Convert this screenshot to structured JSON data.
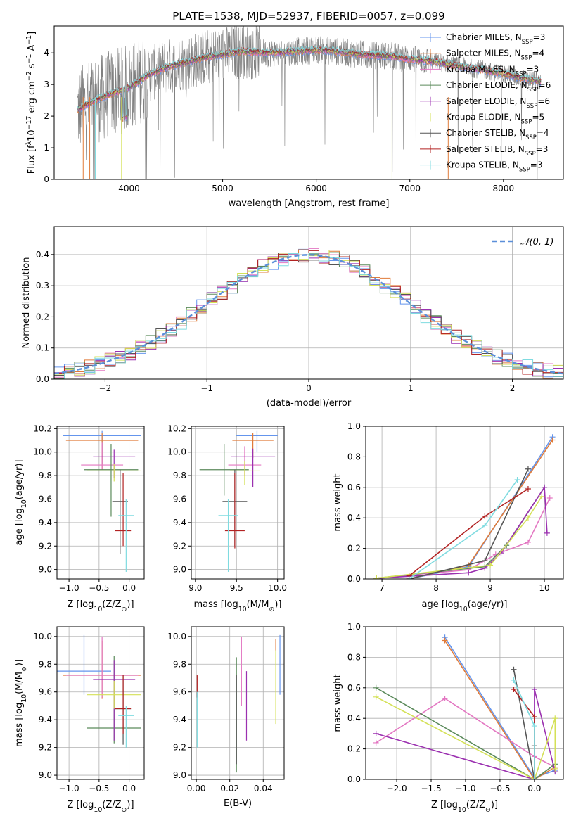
{
  "chart_data": [
    {
      "id": "spectrum",
      "type": "line",
      "title": "PLATE=1538, MJD=52937, FIBERID=0057, z=0.099",
      "xlabel": "wavelength [Angstrom, rest frame]",
      "ylabel_parts": [
        "Flux [f",
        "λ",
        "10",
        "−17",
        " erg cm",
        "−2",
        " s",
        "−1",
        " A",
        "−1",
        "]"
      ],
      "xlim": [
        3200,
        8640
      ],
      "ylim": [
        0,
        4.85
      ],
      "xticks": [
        4000,
        5000,
        6000,
        7000,
        8000
      ],
      "yticks": [
        0,
        1,
        2,
        3,
        4
      ],
      "grid": false,
      "legend_position": "top-right",
      "continuum": {
        "x": [
          3450,
          3600,
          3800,
          4000,
          4200,
          4400,
          4600,
          4800,
          5000,
          5200,
          5500,
          5800,
          6000,
          6200,
          6500,
          6800,
          7000,
          7200,
          7500,
          7800,
          8000,
          8200,
          8400
        ],
        "y": [
          2.2,
          2.45,
          2.7,
          2.9,
          3.3,
          3.55,
          3.7,
          3.85,
          3.95,
          4.05,
          4.0,
          4.05,
          4.1,
          4.05,
          3.95,
          3.9,
          3.8,
          3.75,
          3.6,
          3.45,
          3.35,
          3.2,
          3.1
        ]
      },
      "observed_color": "#808080",
      "series": [
        {
          "name": "Chabrier MILES, N",
          "sub": "SSP",
          "suffix": "=3",
          "color": "#6495ed"
        },
        {
          "name": "Salpeter MILES, N",
          "sub": "SSP",
          "suffix": "=4",
          "color": "#e07b39"
        },
        {
          "name": "Kroupa MILES, N",
          "sub": "SSP",
          "suffix": "=3",
          "color": "#e377c2"
        },
        {
          "name": "Chabrier ELODIE, N",
          "sub": "SSP",
          "suffix": "=6",
          "color": "#5b8a5b"
        },
        {
          "name": "Salpeter ELODIE, N",
          "sub": "SSP",
          "suffix": "=6",
          "color": "#9b30b0"
        },
        {
          "name": "Kroupa ELODIE, N",
          "sub": "SSP",
          "suffix": "=5",
          "color": "#d4e157"
        },
        {
          "name": "Chabrier STELIB, N",
          "sub": "SSP",
          "suffix": "=4",
          "color": "#555555"
        },
        {
          "name": "Salpeter STELIB, N",
          "sub": "SSP",
          "suffix": "=3",
          "color": "#b22222"
        },
        {
          "name": "Kroupa STELIB, N",
          "sub": "SSP",
          "suffix": "=3",
          "color": "#7fdbe0"
        }
      ]
    },
    {
      "id": "residuals",
      "type": "line",
      "xlabel": "(data-model)/error",
      "ylabel": "Normed distribution",
      "xlim": [
        -2.5,
        2.5
      ],
      "ylim": [
        0,
        0.49
      ],
      "xticks": [
        -2,
        -1,
        0,
        1,
        2
      ],
      "yticks": [
        0.0,
        0.1,
        0.2,
        0.3,
        0.4
      ],
      "grid": true,
      "legend_position": "top-right",
      "legend_label": "𝒩(0, 1)",
      "gaussian_color": "#5b8fd9",
      "bins": {
        "start": -2.5,
        "width": 0.1
      }
    },
    {
      "id": "age_vs_Z",
      "type": "scatter",
      "xlabel_parts": [
        "Z [log",
        "10",
        "(Z/Z",
        "⊙",
        ")]"
      ],
      "ylabel_parts": [
        "age  [log",
        "10",
        "(age/yr)]"
      ],
      "xlim": [
        -1.2,
        0.25
      ],
      "ylim": [
        8.92,
        10.22
      ],
      "xticks": [
        -1.0,
        -0.5,
        0.0
      ],
      "yticks": [
        9.0,
        9.2,
        9.4,
        9.6,
        9.8,
        10.0,
        10.2
      ],
      "grid": true,
      "points": [
        {
          "x": -0.45,
          "y": 10.14,
          "xerr": 0.65,
          "ylo": 9.9,
          "yhi": 10.18,
          "color": "#6495ed"
        },
        {
          "x": -0.45,
          "y": 10.1,
          "xerr": 0.6,
          "ylo": 9.85,
          "yhi": 10.16,
          "color": "#e07b39"
        },
        {
          "x": -0.45,
          "y": 9.89,
          "xerr": 0.35,
          "ylo": 9.85,
          "yhi": 10.08,
          "color": "#e377c2"
        },
        {
          "x": -0.3,
          "y": 9.85,
          "xerr": 0.45,
          "ylo": 9.45,
          "yhi": 10.07,
          "color": "#5b8a5b"
        },
        {
          "x": -0.25,
          "y": 9.96,
          "xerr": 0.35,
          "ylo": 9.78,
          "yhi": 10.02,
          "color": "#9b30b0"
        },
        {
          "x": -0.25,
          "y": 9.84,
          "xerr": 0.45,
          "ylo": 9.75,
          "yhi": 9.9,
          "color": "#d4e157"
        },
        {
          "x": -0.15,
          "y": 9.58,
          "xerr": 0.13,
          "ylo": 9.13,
          "yhi": 9.85,
          "color": "#555555"
        },
        {
          "x": -0.1,
          "y": 9.33,
          "xerr": 0.13,
          "ylo": 9.2,
          "yhi": 9.82,
          "color": "#b22222"
        },
        {
          "x": -0.05,
          "y": 9.46,
          "xerr": 0.13,
          "ylo": 8.98,
          "yhi": 9.6,
          "color": "#7fdbe0"
        }
      ]
    },
    {
      "id": "age_vs_mass",
      "type": "scatter",
      "xlabel_parts": [
        "mass [log",
        "10",
        "(M/M",
        "⊙",
        ")]"
      ],
      "xlim": [
        8.95,
        10.08
      ],
      "ylim": [
        8.92,
        10.22
      ],
      "xticks": [
        9.0,
        9.5,
        10.0
      ],
      "yticks": [
        9.0,
        9.2,
        9.4,
        9.6,
        9.8,
        10.0,
        10.2
      ],
      "grid": true,
      "points": [
        {
          "x": 9.75,
          "y": 10.14,
          "xerr": 0.25,
          "ylo": 10.0,
          "yhi": 10.18,
          "color": "#6495ed"
        },
        {
          "x": 9.7,
          "y": 10.1,
          "xerr": 0.25,
          "ylo": 9.95,
          "yhi": 10.16,
          "color": "#e07b39"
        },
        {
          "x": 9.6,
          "y": 9.89,
          "xerr": 0.2,
          "ylo": 9.8,
          "yhi": 10.05,
          "color": "#e377c2"
        },
        {
          "x": 9.35,
          "y": 9.85,
          "xerr": 0.3,
          "ylo": 9.63,
          "yhi": 10.07,
          "color": "#5b8a5b"
        },
        {
          "x": 9.7,
          "y": 9.96,
          "xerr": 0.27,
          "ylo": 9.7,
          "yhi": 10.03,
          "color": "#9b30b0"
        },
        {
          "x": 9.6,
          "y": 9.84,
          "xerr": 0.18,
          "ylo": 9.72,
          "yhi": 9.92,
          "color": "#d4e157"
        },
        {
          "x": 9.48,
          "y": 9.58,
          "xerr": 0.15,
          "ylo": 9.2,
          "yhi": 9.85,
          "color": "#555555"
        },
        {
          "x": 9.48,
          "y": 9.33,
          "xerr": 0.12,
          "ylo": 9.18,
          "yhi": 9.82,
          "color": "#b22222"
        },
        {
          "x": 9.4,
          "y": 9.46,
          "xerr": 0.12,
          "ylo": 8.98,
          "yhi": 9.6,
          "color": "#7fdbe0"
        }
      ]
    },
    {
      "id": "weight_vs_age",
      "type": "line",
      "xlabel_parts": [
        "age  [log",
        "10",
        "(age/yr)]"
      ],
      "ylabel": "mass weight",
      "xlim": [
        6.7,
        10.35
      ],
      "ylim": [
        0,
        1.0
      ],
      "xticks": [
        7,
        8,
        9,
        10
      ],
      "yticks": [
        0.0,
        0.2,
        0.4,
        0.6,
        0.8,
        1.0
      ],
      "grid": true,
      "series": [
        {
          "color": "#6495ed",
          "x": [
            7.5,
            8.6,
            10.15
          ],
          "y": [
            0.0,
            0.08,
            0.93
          ]
        },
        {
          "color": "#e07b39",
          "x": [
            7.5,
            8.6,
            10.15
          ],
          "y": [
            0.0,
            0.09,
            0.91
          ]
        },
        {
          "color": "#e377c2",
          "x": [
            6.9,
            8.6,
            9.1,
            9.7,
            10.1
          ],
          "y": [
            0.005,
            0.06,
            0.16,
            0.24,
            0.53
          ]
        },
        {
          "color": "#5b8a5b",
          "x": [
            6.9,
            8.9,
            9.3,
            10.0
          ],
          "y": [
            0.005,
            0.08,
            0.22,
            0.6
          ]
        },
        {
          "color": "#9b30b0",
          "x": [
            6.9,
            8.6,
            8.9,
            9.2,
            10.0,
            10.05
          ],
          "y": [
            0.005,
            0.04,
            0.07,
            0.17,
            0.6,
            0.3
          ]
        },
        {
          "color": "#d4e157",
          "x": [
            6.9,
            9.0,
            9.7,
            9.95
          ],
          "y": [
            0.005,
            0.09,
            0.4,
            0.54
          ]
        },
        {
          "color": "#555555",
          "x": [
            7.5,
            8.9,
            9.7
          ],
          "y": [
            0.0,
            0.12,
            0.72
          ]
        },
        {
          "color": "#b22222",
          "x": [
            7.5,
            8.9,
            9.7
          ],
          "y": [
            0.02,
            0.41,
            0.59
          ]
        },
        {
          "color": "#7fdbe0",
          "x": [
            7.5,
            8.9,
            9.5
          ],
          "y": [
            0.0,
            0.35,
            0.65
          ]
        }
      ]
    },
    {
      "id": "mass_vs_Z",
      "type": "scatter",
      "xlabel_parts": [
        "Z [log",
        "10",
        "(Z/Z",
        "⊙",
        ")]"
      ],
      "ylabel_parts": [
        "mass [log",
        "10",
        "(M/M",
        "⊙",
        ")]"
      ],
      "xlim": [
        -1.2,
        0.25
      ],
      "ylim": [
        8.97,
        10.07
      ],
      "xticks": [
        -1.0,
        -0.5,
        0.0
      ],
      "yticks": [
        9.0,
        9.2,
        9.4,
        9.6,
        9.8,
        10.0
      ],
      "grid": true,
      "points": [
        {
          "x": -0.75,
          "y": 9.75,
          "xerr": 0.45,
          "ylo": 9.58,
          "yhi": 10.01,
          "color": "#6495ed"
        },
        {
          "x": -0.45,
          "y": 9.72,
          "xerr": 0.65,
          "ylo": 9.55,
          "yhi": 9.97,
          "color": "#e07b39"
        },
        {
          "x": -0.45,
          "y": 9.72,
          "xerr": 0.6,
          "ylo": 9.56,
          "yhi": 10.0,
          "color": "#e377c2"
        },
        {
          "x": -0.25,
          "y": 9.34,
          "xerr": 0.45,
          "ylo": 9.23,
          "yhi": 9.86,
          "color": "#5b8a5b"
        },
        {
          "x": -0.25,
          "y": 9.69,
          "xerr": 0.35,
          "ylo": 9.25,
          "yhi": 9.83,
          "color": "#9b30b0"
        },
        {
          "x": -0.25,
          "y": 9.58,
          "xerr": 0.45,
          "ylo": 9.48,
          "yhi": 9.68,
          "color": "#d4e157"
        },
        {
          "x": -0.1,
          "y": 9.47,
          "xerr": 0.13,
          "ylo": 9.22,
          "yhi": 9.72,
          "color": "#555555"
        },
        {
          "x": -0.1,
          "y": 9.48,
          "xerr": 0.13,
          "ylo": 9.3,
          "yhi": 9.72,
          "color": "#b22222"
        },
        {
          "x": -0.05,
          "y": 9.43,
          "xerr": 0.13,
          "ylo": 9.2,
          "yhi": 9.5,
          "color": "#7fdbe0"
        }
      ]
    },
    {
      "id": "mass_vs_ebv",
      "type": "scatter",
      "xlabel": "E(B-V)",
      "xlim": [
        -0.003,
        0.0525
      ],
      "ylim": [
        8.97,
        10.07
      ],
      "xticks": [
        0.0,
        0.02,
        0.04
      ],
      "yticks": [
        9.0,
        9.2,
        9.4,
        9.6,
        9.8,
        10.0
      ],
      "grid": true,
      "points": [
        {
          "x": 0.05,
          "ylo": 9.58,
          "yhi": 10.01,
          "color": "#6495ed"
        },
        {
          "x": 0.0475,
          "ylo": 9.8,
          "yhi": 9.98,
          "color": "#e07b39"
        },
        {
          "x": 0.027,
          "ylo": 9.5,
          "yhi": 10.0,
          "color": "#e377c2"
        },
        {
          "x": 0.024,
          "ylo": 9.02,
          "yhi": 9.85,
          "color": "#5b8a5b"
        },
        {
          "x": 0.03,
          "ylo": 9.25,
          "yhi": 9.75,
          "color": "#9b30b0"
        },
        {
          "x": 0.0475,
          "ylo": 9.37,
          "yhi": 9.9,
          "color": "#d4e157"
        },
        {
          "x": 0.024,
          "ylo": 9.08,
          "yhi": 9.72,
          "color": "#555555"
        },
        {
          "x": 0.0005,
          "ylo": 9.56,
          "yhi": 9.72,
          "color": "#b22222"
        },
        {
          "x": 0.0005,
          "ylo": 9.2,
          "yhi": 9.6,
          "color": "#7fdbe0"
        }
      ]
    },
    {
      "id": "weight_vs_Z",
      "type": "line",
      "xlabel_parts": [
        "Z [log",
        "10",
        "(Z/Z",
        "⊙",
        ")]"
      ],
      "ylabel": "mass weight",
      "xlim": [
        -2.45,
        0.42
      ],
      "ylim": [
        0,
        1.0
      ],
      "xticks": [
        -2.0,
        -1.5,
        -1.0,
        -0.5,
        0.0
      ],
      "yticks": [
        0.0,
        0.2,
        0.4,
        0.6,
        0.8,
        1.0
      ],
      "grid": true,
      "series": [
        {
          "color": "#6495ed",
          "x": [
            -1.3,
            0.0,
            0.3
          ],
          "y": [
            0.93,
            0.01,
            0.06
          ]
        },
        {
          "color": "#e07b39",
          "x": [
            -1.3,
            0.0,
            0.3
          ],
          "y": [
            0.91,
            0.0,
            0.08
          ]
        },
        {
          "color": "#e377c2",
          "x": [
            -2.3,
            -1.3,
            0.0,
            0.3
          ],
          "y": [
            0.24,
            0.53,
            0.15,
            0.08
          ]
        },
        {
          "color": "#5b8a5b",
          "x": [
            -2.3,
            0.0,
            0.3
          ],
          "y": [
            0.6,
            0.0,
            0.1
          ]
        },
        {
          "color": "#9b30b0",
          "x": [
            -2.3,
            0.0,
            0.0,
            0.3
          ],
          "y": [
            0.3,
            0.0,
            0.59,
            0.05
          ]
        },
        {
          "color": "#d4e157",
          "x": [
            -2.3,
            0.0,
            0.3,
            0.3
          ],
          "y": [
            0.54,
            0.0,
            0.4,
            0.07
          ]
        },
        {
          "color": "#555555",
          "x": [
            -0.3,
            0.0,
            0.0
          ],
          "y": [
            0.72,
            0.0,
            0.22
          ]
        },
        {
          "color": "#b22222",
          "x": [
            -0.3,
            0.0,
            0.0
          ],
          "y": [
            0.59,
            0.41,
            0.0
          ]
        },
        {
          "color": "#7fdbe0",
          "x": [
            -0.3,
            0.0,
            0.0
          ],
          "y": [
            0.65,
            0.35,
            0.0
          ]
        }
      ]
    }
  ]
}
